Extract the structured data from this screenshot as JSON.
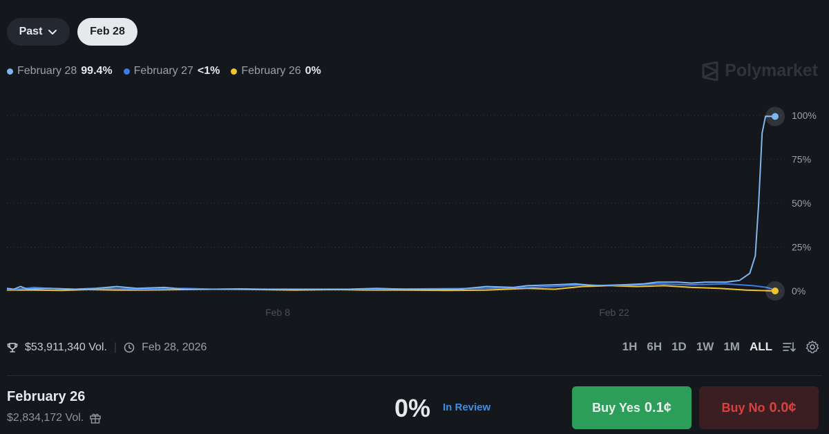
{
  "controls": {
    "past_label": "Past",
    "date_label": "Feb 28"
  },
  "legend": [
    {
      "name": "February 28",
      "value": "99.4%",
      "color": "#7fb6f0"
    },
    {
      "name": "February 27",
      "value": "<1%",
      "color": "#3d7be6"
    },
    {
      "name": "February 26",
      "value": "0%",
      "color": "#f2c42c"
    }
  ],
  "brand": {
    "name": "Polymarket"
  },
  "chart_data": {
    "type": "line",
    "x_ticks": [
      "Feb 8",
      "Feb 22"
    ],
    "y_ticks": [
      "100%",
      "75%",
      "50%",
      "25%",
      "0%"
    ],
    "ylim": [
      0,
      100
    ],
    "grid": true,
    "series": [
      {
        "name": "February 28",
        "color": "#7fb6f0",
        "points": [
          [
            0,
            1.5
          ],
          [
            10,
            1
          ],
          [
            20,
            2.5
          ],
          [
            30,
            1
          ],
          [
            60,
            1.5
          ],
          [
            100,
            1
          ],
          [
            130,
            1.5
          ],
          [
            160,
            2.5
          ],
          [
            190,
            1.5
          ],
          [
            230,
            2
          ],
          [
            260,
            1
          ],
          [
            300,
            1
          ],
          [
            340,
            1.2
          ],
          [
            380,
            1
          ],
          [
            420,
            1
          ],
          [
            460,
            1
          ],
          [
            500,
            1
          ],
          [
            540,
            1.5
          ],
          [
            580,
            1
          ],
          [
            620,
            1
          ],
          [
            660,
            1
          ],
          [
            700,
            2.5
          ],
          [
            740,
            2
          ],
          [
            760,
            3
          ],
          [
            800,
            3.5
          ],
          [
            830,
            4
          ],
          [
            860,
            3
          ],
          [
            900,
            3.5
          ],
          [
            930,
            4
          ],
          [
            950,
            5
          ],
          [
            980,
            5
          ],
          [
            1000,
            4.5
          ],
          [
            1020,
            5
          ],
          [
            1050,
            5
          ],
          [
            1070,
            6
          ],
          [
            1085,
            10
          ],
          [
            1093,
            20
          ],
          [
            1098,
            50
          ],
          [
            1103,
            90
          ],
          [
            1108,
            99.5
          ],
          [
            1122,
            99.4
          ]
        ]
      },
      {
        "name": "February 27",
        "color": "#3d7be6",
        "points": [
          [
            0,
            1
          ],
          [
            10,
            0.8
          ],
          [
            40,
            2
          ],
          [
            60,
            1.5
          ],
          [
            100,
            1
          ],
          [
            150,
            1.5
          ],
          [
            200,
            1
          ],
          [
            260,
            1.5
          ],
          [
            300,
            1
          ],
          [
            400,
            1
          ],
          [
            500,
            1
          ],
          [
            600,
            1.2
          ],
          [
            700,
            1.5
          ],
          [
            760,
            2
          ],
          [
            800,
            2.5
          ],
          [
            840,
            3.5
          ],
          [
            880,
            3
          ],
          [
            920,
            3.5
          ],
          [
            950,
            4
          ],
          [
            1000,
            3.5
          ],
          [
            1050,
            4
          ],
          [
            1090,
            3
          ],
          [
            1110,
            2
          ],
          [
            1122,
            0.5
          ]
        ]
      },
      {
        "name": "February 26",
        "color": "#f2c42c",
        "points": [
          [
            0,
            0.5
          ],
          [
            40,
            0.5
          ],
          [
            80,
            0.3
          ],
          [
            120,
            0.8
          ],
          [
            160,
            0.5
          ],
          [
            200,
            0.5
          ],
          [
            260,
            0.8
          ],
          [
            300,
            1
          ],
          [
            360,
            0.8
          ],
          [
            420,
            0.5
          ],
          [
            480,
            0.8
          ],
          [
            520,
            0.5
          ],
          [
            580,
            0.5
          ],
          [
            640,
            0.3
          ],
          [
            700,
            0.5
          ],
          [
            760,
            1.5
          ],
          [
            800,
            1
          ],
          [
            840,
            2.5
          ],
          [
            880,
            3
          ],
          [
            920,
            2.5
          ],
          [
            960,
            3
          ],
          [
            1000,
            2
          ],
          [
            1040,
            1.5
          ],
          [
            1080,
            0.5
          ],
          [
            1122,
            0
          ]
        ]
      }
    ]
  },
  "stats": {
    "volume": "$53,911,340 Vol.",
    "date": "Feb 28, 2026"
  },
  "ranges": [
    "1H",
    "6H",
    "1D",
    "1W",
    "1M",
    "ALL"
  ],
  "active_range": "ALL",
  "outcome": {
    "title": "February 26",
    "volume": "$2,834,172 Vol.",
    "percent": "0%",
    "status": "In Review",
    "buy_yes_label": "Buy Yes",
    "buy_yes_price": "0.1¢",
    "buy_no_label": "Buy No",
    "buy_no_price": "0.0¢"
  }
}
